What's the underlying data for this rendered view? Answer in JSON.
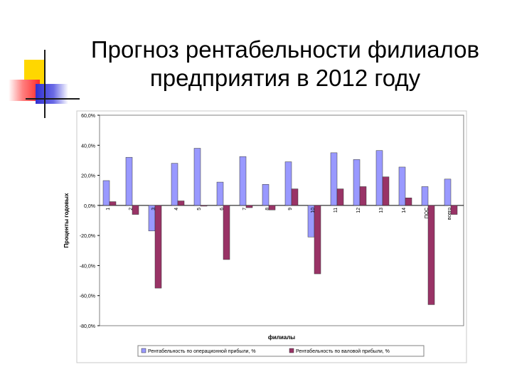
{
  "slide": {
    "title_line1": "Прогноз рентабельности филиалов",
    "title_line2": "предприятия в 2012 году"
  },
  "chart_data": {
    "type": "bar",
    "title": "",
    "xlabel": "филиалы",
    "ylabel": "Проценты годовых",
    "ylim": [
      -80,
      60
    ],
    "yticks": [
      60,
      40,
      20,
      0,
      -20,
      -40,
      -60,
      -80
    ],
    "ytick_labels": [
      "60,0%",
      "40,0%",
      "20,0%",
      "0,0%",
      "-20,0%",
      "-40,0%",
      "-60,0%",
      "-80,0%"
    ],
    "grid": false,
    "legend_position": "bottom",
    "categories": [
      "1",
      "2",
      "3",
      "4",
      "5",
      "6",
      "7",
      "8",
      "9",
      "10",
      "11",
      "12",
      "13",
      "14",
      "ПОС",
      "всего"
    ],
    "series": [
      {
        "name": "Рентабельность по операционной прибыли, %",
        "color": "#9999ff",
        "values": [
          16.5,
          32,
          -17,
          28,
          38,
          15.5,
          32.5,
          14,
          29,
          -21,
          35,
          30.5,
          36.5,
          25.5,
          12.5,
          17.5
        ]
      },
      {
        "name": "Рентабельность по валовой прибыли, %",
        "color": "#993366",
        "values": [
          2.5,
          -6,
          -55,
          3,
          -0.5,
          -36,
          -1.5,
          -3,
          11,
          -45.5,
          11,
          12.5,
          19,
          5,
          -66,
          -6
        ]
      }
    ]
  }
}
